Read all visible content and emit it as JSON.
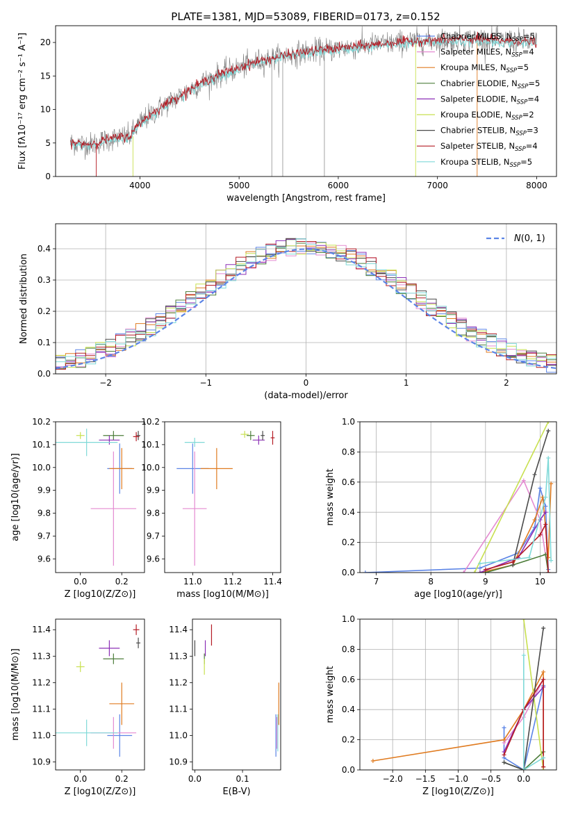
{
  "figure": {
    "title": "PLATE=1381, MJD=53089, FIBERID=0173, z=0.152"
  },
  "colors": {
    "Chabrier MILES": "#5b84e6",
    "Salpeter MILES": "#e48ad1",
    "Kroupa MILES": "#e07b20",
    "Chabrier ELODIE": "#4c7d3a",
    "Salpeter ELODIE": "#8b2fb6",
    "Kroupa ELODIE": "#c8e04f",
    "Chabrier STELIB": "#4a4a4a",
    "Salpeter STELIB": "#b41b24",
    "Kroupa STELIB": "#7fd9d8"
  },
  "chart_data": [
    {
      "id": "spectrum",
      "type": "line",
      "xlabel": "wavelength [Angstrom, rest frame]",
      "ylabel": "Flux [fλ10⁻¹⁷ erg cm⁻² s⁻¹ A⁻¹]",
      "xlim": [
        3150,
        8200
      ],
      "ylim": [
        0,
        22.5
      ],
      "xticks": [
        4000,
        5000,
        6000,
        7000,
        8000
      ],
      "yticks": [
        0,
        5,
        10,
        15,
        20
      ],
      "grid": false,
      "legend_position": "top-right",
      "continuum": {
        "x": [
          3300,
          3500,
          3700,
          3900,
          4000,
          4200,
          4400,
          4600,
          4800,
          5000,
          5200,
          5400,
          5600,
          5800,
          6000,
          6200,
          6400,
          6600,
          6800,
          7000,
          7200,
          7400,
          7600,
          7800,
          8000
        ],
        "y": [
          5.0,
          4.8,
          5.6,
          6.0,
          8.0,
          10.2,
          12.0,
          13.8,
          15.2,
          16.2,
          17.2,
          17.8,
          18.4,
          18.8,
          19.1,
          19.4,
          19.7,
          20.0,
          20.2,
          20.3,
          20.4,
          20.5,
          20.3,
          20.2,
          20.0
        ]
      },
      "series": [
        {
          "name": "Chabrier MILES, N_SSP=5",
          "label_main": "Chabrier MILES, N",
          "label_sub": "SSP",
          "label_tail": "=5",
          "color": "#5b84e6"
        },
        {
          "name": "Salpeter MILES, N_SSP=4",
          "label_main": "Salpeter MILES, N",
          "label_sub": "SSP",
          "label_tail": "=4",
          "color": "#e48ad1"
        },
        {
          "name": "Kroupa MILES, N_SSP=5",
          "label_main": "Kroupa MILES, N",
          "label_sub": "SSP",
          "label_tail": "=5",
          "color": "#e07b20"
        },
        {
          "name": "Chabrier ELODIE, N_SSP=5",
          "label_main": "Chabrier ELODIE, N",
          "label_sub": "SSP",
          "label_tail": "=5",
          "color": "#4c7d3a"
        },
        {
          "name": "Salpeter ELODIE, N_SSP=4",
          "label_main": "Salpeter ELODIE, N",
          "label_sub": "SSP",
          "label_tail": "=4",
          "color": "#8b2fb6"
        },
        {
          "name": "Kroupa ELODIE, N_SSP=2",
          "label_main": "Kroupa ELODIE, N",
          "label_sub": "SSP",
          "label_tail": "=2",
          "color": "#c8e04f"
        },
        {
          "name": "Chabrier STELIB, N_SSP=3",
          "label_main": "Chabrier STELIB, N",
          "label_sub": "SSP",
          "label_tail": "=3",
          "color": "#4a4a4a"
        },
        {
          "name": "Salpeter STELIB, N_SSP=4",
          "label_main": "Salpeter STELIB, N",
          "label_sub": "SSP",
          "label_tail": "=4",
          "color": "#b41b24"
        },
        {
          "name": "Kroupa STELIB, N_SSP=5",
          "label_main": "Kroupa STELIB, N",
          "label_sub": "SSP",
          "label_tail": "=5",
          "color": "#7fd9d8"
        }
      ],
      "spikes": [
        {
          "x": 3560,
          "y0": 0,
          "y1": 5,
          "color": "#b41b24"
        },
        {
          "x": 3930,
          "y0": 0,
          "y1": 6,
          "color": "#c8e04f"
        },
        {
          "x": 5330,
          "y0": 0,
          "y1": 17,
          "color": "#999999"
        },
        {
          "x": 5440,
          "y0": 0,
          "y1": 17,
          "color": "#999999"
        },
        {
          "x": 5860,
          "y0": 0,
          "y1": 19,
          "color": "#999999"
        },
        {
          "x": 6780,
          "y0": 0,
          "y1": 20,
          "color": "#c8e04f"
        },
        {
          "x": 7400,
          "y0": 0,
          "y1": 20,
          "color": "#e07b20"
        }
      ]
    },
    {
      "id": "residual-histogram",
      "type": "bar",
      "xlabel": "(data-model)/error",
      "ylabel": "Normed distribution",
      "xlim": [
        -2.5,
        2.5
      ],
      "ylim": [
        0,
        0.48
      ],
      "xticks": [
        -2,
        -1,
        0,
        1,
        2
      ],
      "yticks": [
        0.0,
        0.1,
        0.2,
        0.3,
        0.4
      ],
      "grid": true,
      "legend_position": "top-right",
      "reference_curve": {
        "name": "N(0,1)",
        "color": "#5b84e6",
        "style": "dashed"
      },
      "bin_width": 0.1
    },
    {
      "id": "age-vs-Z",
      "type": "scatter",
      "xlabel": "Z [log10(Z/Z⊙)]",
      "ylabel": "age [log10(age/yr)]",
      "xlim": [
        -0.12,
        0.31
      ],
      "ylim": [
        9.54,
        10.2
      ],
      "xticks": [
        0.0,
        0.2
      ],
      "yticks": [
        9.6,
        9.7,
        9.8,
        9.9,
        10.0,
        10.1,
        10.2
      ],
      "points": [
        {
          "series": "Chabrier MILES",
          "x": 0.19,
          "y": 9.995,
          "xerr": 0.06,
          "yerr": 0.11
        },
        {
          "series": "Salpeter MILES",
          "x": 0.16,
          "y": 9.82,
          "xerr": 0.11,
          "yerr": 0.25
        },
        {
          "series": "Kroupa MILES",
          "x": 0.2,
          "y": 9.995,
          "xerr": 0.06,
          "yerr": 0.09
        },
        {
          "series": "Chabrier ELODIE",
          "x": 0.16,
          "y": 10.14,
          "xerr": 0.05,
          "yerr": 0.02
        },
        {
          "series": "Salpeter ELODIE",
          "x": 0.14,
          "y": 10.12,
          "xerr": 0.05,
          "yerr": 0.02
        },
        {
          "series": "Kroupa ELODIE",
          "x": 0.0,
          "y": 10.14,
          "xerr": 0.02,
          "yerr": 0.015
        },
        {
          "series": "Chabrier STELIB",
          "x": 0.28,
          "y": 10.14,
          "xerr": 0.01,
          "yerr": 0.02
        },
        {
          "series": "Salpeter STELIB",
          "x": 0.27,
          "y": 10.135,
          "xerr": 0.015,
          "yerr": 0.02
        },
        {
          "series": "Kroupa STELIB",
          "x": 0.03,
          "y": 10.11,
          "xerr": 0.15,
          "yerr": 0.06
        }
      ]
    },
    {
      "id": "age-vs-mass",
      "type": "scatter",
      "xlabel": "mass [log10(M/M⊙)]",
      "ylabel": "",
      "xlim": [
        10.86,
        11.44
      ],
      "ylim": [
        9.54,
        10.2
      ],
      "xticks": [
        11.0,
        11.2,
        11.4
      ],
      "yticks": [
        9.6,
        9.7,
        9.8,
        9.9,
        10.0,
        10.1,
        10.2
      ],
      "points": [
        {
          "series": "Chabrier MILES",
          "x": 11.0,
          "y": 9.995,
          "xerr": 0.08,
          "yerr": 0.11
        },
        {
          "series": "Salpeter MILES",
          "x": 11.01,
          "y": 9.82,
          "xerr": 0.06,
          "yerr": 0.25
        },
        {
          "series": "Kroupa MILES",
          "x": 11.12,
          "y": 9.995,
          "xerr": 0.08,
          "yerr": 0.09
        },
        {
          "series": "Chabrier ELODIE",
          "x": 11.29,
          "y": 10.14,
          "xerr": 0.02,
          "yerr": 0.02
        },
        {
          "series": "Salpeter ELODIE",
          "x": 11.33,
          "y": 10.12,
          "xerr": 0.03,
          "yerr": 0.02
        },
        {
          "series": "Kroupa ELODIE",
          "x": 11.26,
          "y": 10.145,
          "xerr": 0.02,
          "yerr": 0.015
        },
        {
          "series": "Chabrier STELIB",
          "x": 11.35,
          "y": 10.14,
          "xerr": 0.01,
          "yerr": 0.02
        },
        {
          "series": "Salpeter STELIB",
          "x": 11.4,
          "y": 10.13,
          "xerr": 0.01,
          "yerr": 0.03
        },
        {
          "series": "Kroupa STELIB",
          "x": 11.01,
          "y": 10.11,
          "xerr": 0.05,
          "yerr": 0.02
        }
      ]
    },
    {
      "id": "mass-vs-Z",
      "type": "scatter",
      "xlabel": "Z [log10(Z/Z⊙)]",
      "ylabel": "mass [log10(M/M⊙)]",
      "xlim": [
        -0.12,
        0.31
      ],
      "ylim": [
        10.87,
        11.44
      ],
      "xticks": [
        0.0,
        0.2
      ],
      "yticks": [
        10.9,
        11.0,
        11.1,
        11.2,
        11.3,
        11.4
      ],
      "points": [
        {
          "series": "Chabrier MILES",
          "x": 0.19,
          "y": 11.0,
          "xerr": 0.06,
          "yerr": 0.08
        },
        {
          "series": "Salpeter MILES",
          "x": 0.16,
          "y": 11.01,
          "xerr": 0.11,
          "yerr": 0.06
        },
        {
          "series": "Kroupa MILES",
          "x": 0.2,
          "y": 11.12,
          "xerr": 0.06,
          "yerr": 0.08
        },
        {
          "series": "Chabrier ELODIE",
          "x": 0.16,
          "y": 11.29,
          "xerr": 0.05,
          "yerr": 0.02
        },
        {
          "series": "Salpeter ELODIE",
          "x": 0.14,
          "y": 11.33,
          "xerr": 0.05,
          "yerr": 0.03
        },
        {
          "series": "Kroupa ELODIE",
          "x": 0.0,
          "y": 11.26,
          "xerr": 0.02,
          "yerr": 0.02
        },
        {
          "series": "Chabrier STELIB",
          "x": 0.28,
          "y": 11.35,
          "xerr": 0.01,
          "yerr": 0.02
        },
        {
          "series": "Salpeter STELIB",
          "x": 0.27,
          "y": 11.4,
          "xerr": 0.015,
          "yerr": 0.02
        },
        {
          "series": "Kroupa STELIB",
          "x": 0.03,
          "y": 11.01,
          "xerr": 0.15,
          "yerr": 0.05
        }
      ]
    },
    {
      "id": "mass-vs-EBV",
      "type": "scatter",
      "xlabel": "E(B-V)",
      "ylabel": "",
      "xlim": [
        -0.005,
        0.18
      ],
      "ylim": [
        10.87,
        11.44
      ],
      "xticks": [
        0.0,
        0.1
      ],
      "yticks": [
        10.9,
        11.0,
        11.1,
        11.2,
        11.3,
        11.4
      ],
      "points": [
        {
          "series": "Chabrier MILES",
          "x": 0.17,
          "y": 11.0,
          "xerr": 0,
          "yerr": 0.08
        },
        {
          "series": "Salpeter MILES",
          "x": 0.172,
          "y": 11.01,
          "xerr": 0,
          "yerr": 0.06
        },
        {
          "series": "Kroupa MILES",
          "x": 0.176,
          "y": 11.12,
          "xerr": 0,
          "yerr": 0.08
        },
        {
          "series": "Chabrier ELODIE",
          "x": 0.02,
          "y": 11.29,
          "xerr": 0,
          "yerr": 0.02
        },
        {
          "series": "Salpeter ELODIE",
          "x": 0.022,
          "y": 11.33,
          "xerr": 0,
          "yerr": 0.03
        },
        {
          "series": "Kroupa ELODIE",
          "x": 0.02,
          "y": 11.26,
          "xerr": 0,
          "yerr": 0.03
        },
        {
          "series": "Chabrier STELIB",
          "x": 0.0,
          "y": 11.33,
          "xerr": 0,
          "yerr": 0.03
        },
        {
          "series": "Salpeter STELIB",
          "x": 0.035,
          "y": 11.38,
          "xerr": 0,
          "yerr": 0.04
        },
        {
          "series": "Kroupa STELIB",
          "x": 0.174,
          "y": 11.01,
          "xerr": 0,
          "yerr": 0.07
        }
      ]
    },
    {
      "id": "mass-weight-vs-age",
      "type": "line",
      "xlabel": "age [log10(age/yr)]",
      "ylabel": "mass weight",
      "xlim": [
        6.7,
        10.3
      ],
      "ylim": [
        0,
        1.0
      ],
      "xticks": [
        7,
        8,
        9,
        10
      ],
      "yticks": [
        0.0,
        0.2,
        0.4,
        0.6,
        0.8,
        1.0
      ],
      "grid": true,
      "series": [
        {
          "name": "Chabrier MILES",
          "x": [
            6.8,
            8.9,
            9.6,
            9.9,
            10.0,
            10.1,
            10.15
          ],
          "y": [
            0.0,
            0.03,
            0.13,
            0.3,
            0.56,
            0.44,
            0.02
          ]
        },
        {
          "name": "Salpeter MILES",
          "x": [
            8.6,
            9.7,
            10.0,
            10.15
          ],
          "y": [
            0.0,
            0.61,
            0.35,
            0.0
          ]
        },
        {
          "name": "Kroupa MILES",
          "x": [
            8.9,
            9.5,
            9.9,
            10.05,
            10.15,
            10.2
          ],
          "y": [
            0.0,
            0.05,
            0.35,
            0.5,
            0.1,
            0.59
          ]
        },
        {
          "name": "Chabrier ELODIE",
          "x": [
            9.0,
            9.5,
            10.1,
            10.15
          ],
          "y": [
            0.0,
            0.05,
            0.12,
            0.0
          ]
        },
        {
          "name": "Salpeter ELODIE",
          "x": [
            8.9,
            9.6,
            10.0,
            10.1
          ],
          "y": [
            0.0,
            0.1,
            0.35,
            0.4
          ]
        },
        {
          "name": "Kroupa ELODIE",
          "x": [
            8.8,
            10.15
          ],
          "y": [
            0.0,
            1.0
          ]
        },
        {
          "name": "Chabrier STELIB",
          "x": [
            9.5,
            9.9,
            10.15
          ],
          "y": [
            0.05,
            0.65,
            0.94
          ]
        },
        {
          "name": "Salpeter STELIB",
          "x": [
            9.0,
            9.5,
            10.0,
            10.1,
            10.15
          ],
          "y": [
            0.02,
            0.07,
            0.25,
            0.32,
            0.0
          ]
        },
        {
          "name": "Kroupa STELIB",
          "x": [
            8.9,
            9.8,
            10.1,
            10.15,
            10.2
          ],
          "y": [
            0.06,
            0.1,
            0.5,
            0.76,
            0.08
          ]
        }
      ]
    },
    {
      "id": "mass-weight-vs-Z",
      "type": "line",
      "xlabel": "Z [log10(Z/Z⊙)]",
      "ylabel": "mass weight",
      "xlim": [
        -2.5,
        0.5
      ],
      "ylim": [
        0,
        1.0
      ],
      "xticks": [
        -2.0,
        -1.5,
        -1.0,
        -0.5,
        0.0
      ],
      "yticks": [
        0.0,
        0.2,
        0.4,
        0.6,
        0.8,
        1.0
      ],
      "grid": true,
      "series": [
        {
          "name": "Chabrier MILES",
          "x": [
            -0.3,
            -0.3,
            0.0,
            0.3
          ],
          "y": [
            0.28,
            0.08,
            0.0,
            0.56
          ]
        },
        {
          "name": "Salpeter MILES",
          "x": [
            -0.3,
            0.0,
            0.3
          ],
          "y": [
            0.18,
            0.35,
            0.6
          ]
        },
        {
          "name": "Kroupa MILES",
          "x": [
            -2.3,
            -0.3,
            0.0,
            0.3,
            0.3
          ],
          "y": [
            0.06,
            0.2,
            0.4,
            0.65,
            0.02
          ]
        },
        {
          "name": "Chabrier ELODIE",
          "x": [
            -0.3,
            0.0,
            0.3
          ],
          "y": [
            0.05,
            0.0,
            0.12
          ]
        },
        {
          "name": "Salpeter ELODIE",
          "x": [
            -0.3,
            0.0,
            0.3
          ],
          "y": [
            0.12,
            0.4,
            0.55
          ]
        },
        {
          "name": "Kroupa ELODIE",
          "x": [
            0.0,
            0.3
          ],
          "y": [
            1.0,
            0.0
          ]
        },
        {
          "name": "Chabrier STELIB",
          "x": [
            -0.3,
            0.0,
            0.3
          ],
          "y": [
            0.05,
            0.0,
            0.94
          ]
        },
        {
          "name": "Salpeter STELIB",
          "x": [
            -0.3,
            0.0,
            0.3,
            0.3
          ],
          "y": [
            0.1,
            0.4,
            0.6,
            0.02
          ]
        },
        {
          "name": "Kroupa STELIB",
          "x": [
            0.0,
            0.0,
            0.3
          ],
          "y": [
            0.76,
            0.0,
            0.08
          ]
        }
      ]
    }
  ]
}
